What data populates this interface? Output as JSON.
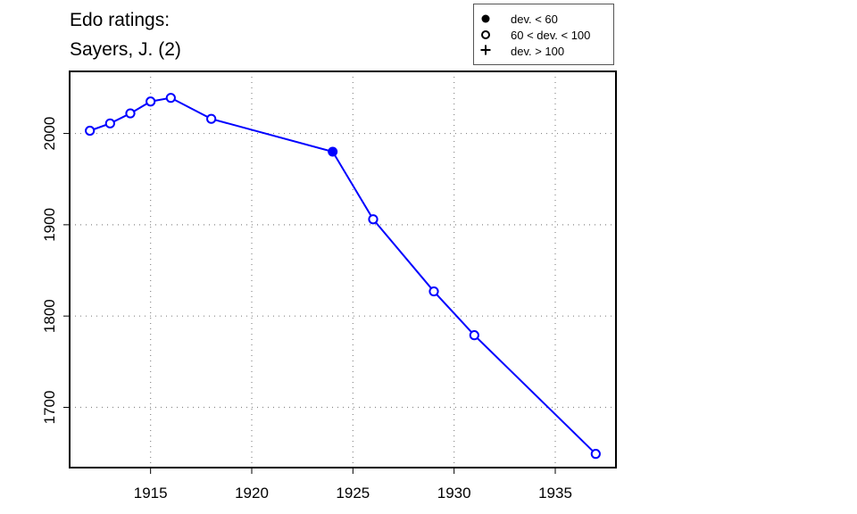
{
  "chart_data": {
    "type": "line",
    "title": [
      "Edo ratings:",
      "Sayers, J. (2)"
    ],
    "xlabel": "",
    "ylabel": "",
    "xlim": [
      1911,
      1938
    ],
    "ylim": [
      1634,
      2068
    ],
    "x_ticks": [
      1915,
      1920,
      1925,
      1930,
      1935
    ],
    "y_ticks": [
      1700,
      1800,
      1900,
      2000
    ],
    "grid": true,
    "line_color": "#0000ff",
    "series": [
      {
        "x": [
          1912,
          1913,
          1914,
          1915,
          1916,
          1918,
          1924,
          1926,
          1929,
          1931,
          1937
        ],
        "y": [
          2003,
          2011,
          2022,
          2035,
          2039,
          2016,
          1980,
          1906,
          1827,
          1779,
          1649
        ],
        "marker": [
          "open",
          "open",
          "open",
          "open",
          "open",
          "open",
          "filled",
          "open",
          "open",
          "open",
          "open"
        ]
      }
    ],
    "legend": {
      "position": "top-right",
      "entries": [
        {
          "label": "dev. < 60",
          "marker": "filled-circle"
        },
        {
          "label": "60 < dev. < 100",
          "marker": "open-circle"
        },
        {
          "label": "dev. > 100",
          "marker": "plus"
        }
      ]
    }
  }
}
